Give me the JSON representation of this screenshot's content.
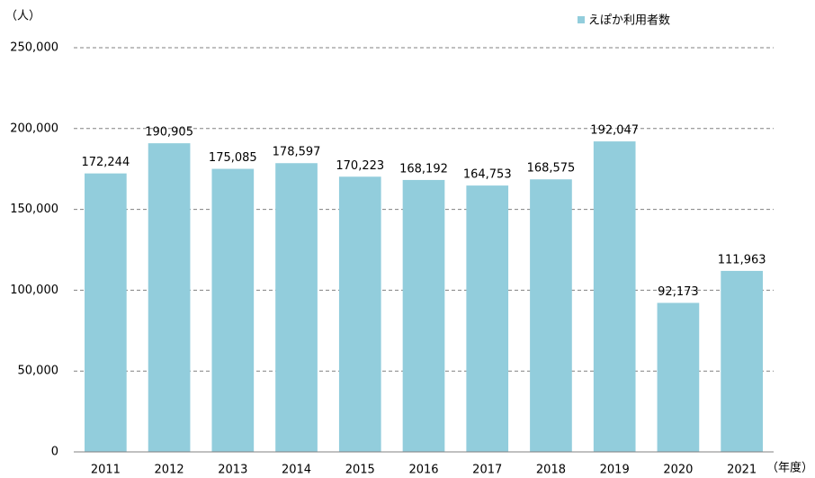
{
  "chart_data": {
    "type": "bar",
    "y_axis_label": "（人）",
    "x_axis_label": "（年度）",
    "categories": [
      "2011",
      "2012",
      "2013",
      "2014",
      "2015",
      "2016",
      "2017",
      "2018",
      "2019",
      "2020",
      "2021"
    ],
    "series": [
      {
        "name": "えぽか利用者数",
        "color": "#92cddc",
        "values": [
          172244,
          190905,
          175085,
          178597,
          170223,
          168192,
          164753,
          168575,
          192047,
          92173,
          111963
        ],
        "value_labels": [
          "172,244",
          "190,905",
          "175,085",
          "178,597",
          "170,223",
          "168,192",
          "164,753",
          "168,575",
          "192,047",
          "92,173",
          "111,963"
        ]
      }
    ],
    "ylim": [
      0,
      250000
    ],
    "yticks": [
      0,
      {
        "value": 50000,
        "label": "50,000"
      },
      {
        "value": 100000,
        "label": "100,000"
      },
      {
        "value": 150000,
        "label": "150,000"
      },
      {
        "value": 200000,
        "label": "200,000"
      },
      {
        "value": 250000,
        "label": "250,000"
      }
    ],
    "grid": true,
    "legend": "top-right"
  }
}
